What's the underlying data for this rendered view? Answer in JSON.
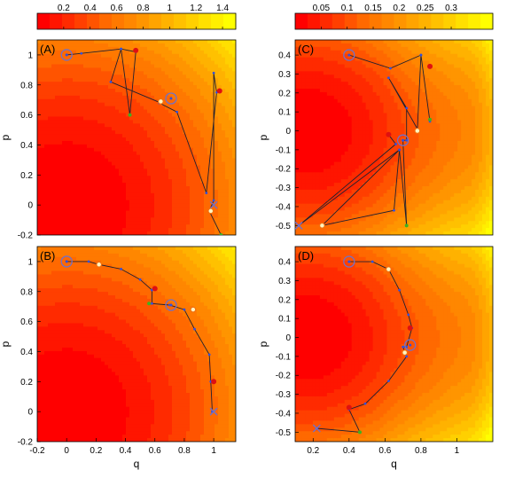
{
  "chart_data": [
    {
      "panel": "(A)",
      "type": "scatter",
      "xlabel": "",
      "ylabel": "p",
      "xlim": [
        -0.2,
        1.15
      ],
      "ylim": [
        -0.2,
        1.1
      ],
      "yticks": [
        "-0.2",
        "0",
        "0.2",
        "0.4",
        "0.6",
        "0.8",
        "1"
      ],
      "xticks": [],
      "colorbar": {
        "range": [
          0,
          1.5
        ],
        "ticks": [
          "0.2",
          "0.4",
          "0.6",
          "0.8",
          "1",
          "1.2",
          "1.4"
        ]
      },
      "field": {
        "type": "energy_radial",
        "min": 0,
        "max": 1.5
      },
      "trajectory": [
        [
          0,
          1
        ],
        [
          0.1,
          1.01
        ],
        [
          0.37,
          1.04
        ],
        [
          0.47,
          1.02
        ],
        [
          0.43,
          0.6
        ],
        [
          0.37,
          1.04
        ],
        [
          0.3,
          0.82
        ],
        [
          0.64,
          0.68
        ],
        [
          0.63,
          0.68
        ],
        [
          0.75,
          0.62
        ],
        [
          0.95,
          0.08
        ],
        [
          1.02,
          0.75
        ],
        [
          1.0,
          0.88
        ],
        [
          1.0,
          0.03
        ],
        [
          0.97,
          -0.04
        ],
        [
          1.05,
          -0.2
        ]
      ],
      "markers": [
        {
          "kind": "ring",
          "x": 0,
          "y": 1
        },
        {
          "kind": "ring",
          "x": 0.71,
          "y": 0.71
        },
        {
          "kind": "cross",
          "x": 1.0,
          "y": 0.0
        },
        {
          "kind": "red",
          "x": 0.47,
          "y": 1.03
        },
        {
          "kind": "red",
          "x": 1.04,
          "y": 0.76
        },
        {
          "kind": "orange",
          "x": 0.64,
          "y": 0.69
        },
        {
          "kind": "orange",
          "x": 0.98,
          "y": -0.04
        },
        {
          "kind": "green",
          "x": 0.43,
          "y": 0.6
        },
        {
          "kind": "green",
          "x": 1.05,
          "y": -0.2
        }
      ]
    },
    {
      "panel": "(C)",
      "type": "scatter",
      "xlabel": "",
      "ylabel": "p",
      "xlim": [
        0.1,
        1.2
      ],
      "ylim": [
        -0.55,
        0.48
      ],
      "yticks": [
        "-0.5",
        "-0.4",
        "-0.3",
        "-0.2",
        "-0.1",
        "0",
        "0.1",
        "0.2",
        "0.3",
        "0.4"
      ],
      "xticks": [],
      "colorbar": {
        "range": [
          0,
          0.38
        ],
        "ticks": [
          "0.05",
          "0.1",
          "0.15",
          "0.2",
          "0.25",
          "0.3"
        ]
      },
      "field": {
        "type": "energy_double_well",
        "min": 0,
        "max": 0.38
      },
      "trajectory": [
        [
          0.4,
          0.4
        ],
        [
          0.63,
          0.33
        ],
        [
          0.8,
          0.4
        ],
        [
          0.85,
          0.05
        ],
        [
          0.8,
          0.4
        ],
        [
          0.78,
          0.01
        ],
        [
          0.62,
          0.28
        ],
        [
          0.72,
          0.12
        ],
        [
          0.72,
          -0.05
        ],
        [
          0.7,
          -0.05
        ],
        [
          0.72,
          -0.5
        ],
        [
          0.68,
          -0.1
        ],
        [
          0.65,
          -0.42
        ],
        [
          0.25,
          -0.5
        ],
        [
          0.68,
          -0.1
        ],
        [
          0.12,
          -0.5
        ],
        [
          0.66,
          -0.07
        ],
        [
          0.62,
          -0.02
        ]
      ],
      "markers": [
        {
          "kind": "ring",
          "x": 0.4,
          "y": 0.4
        },
        {
          "kind": "ring",
          "x": 0.7,
          "y": -0.05
        },
        {
          "kind": "cross",
          "x": 0.12,
          "y": -0.5
        },
        {
          "kind": "red",
          "x": 0.85,
          "y": 0.34
        },
        {
          "kind": "red",
          "x": 0.62,
          "y": -0.02
        },
        {
          "kind": "orange",
          "x": 0.78,
          "y": 0.0
        },
        {
          "kind": "orange",
          "x": 0.25,
          "y": -0.5
        },
        {
          "kind": "green",
          "x": 0.85,
          "y": 0.06
        },
        {
          "kind": "green",
          "x": 0.72,
          "y": -0.5
        }
      ]
    },
    {
      "panel": "(B)",
      "type": "scatter",
      "xlabel": "q",
      "ylabel": "p",
      "xlim": [
        -0.2,
        1.15
      ],
      "ylim": [
        -0.2,
        1.1
      ],
      "yticks": [
        "-0.2",
        "0",
        "0.2",
        "0.4",
        "0.6",
        "0.8",
        "1"
      ],
      "xticks": [
        "-0.2",
        "0",
        "0.2",
        "0.4",
        "0.6",
        "0.8",
        "1"
      ],
      "field": {
        "type": "energy_radial",
        "min": 0,
        "max": 1.5
      },
      "trajectory": [
        [
          0,
          1
        ],
        [
          0.15,
          1.0
        ],
        [
          0.22,
          0.98
        ],
        [
          0.37,
          0.95
        ],
        [
          0.5,
          0.88
        ],
        [
          0.58,
          0.81
        ],
        [
          0.58,
          0.72
        ],
        [
          0.7,
          0.71
        ],
        [
          0.8,
          0.68
        ],
        [
          0.87,
          0.55
        ],
        [
          0.97,
          0.38
        ],
        [
          0.98,
          0.2
        ],
        [
          0.99,
          0.0
        ]
      ],
      "markers": [
        {
          "kind": "ring",
          "x": 0,
          "y": 1
        },
        {
          "kind": "ring",
          "x": 0.71,
          "y": 0.71
        },
        {
          "kind": "cross",
          "x": 1.0,
          "y": 0.0
        },
        {
          "kind": "red",
          "x": 0.6,
          "y": 0.82
        },
        {
          "kind": "red",
          "x": 1.0,
          "y": 0.2
        },
        {
          "kind": "orange",
          "x": 0.22,
          "y": 0.98
        },
        {
          "kind": "orange",
          "x": 0.86,
          "y": 0.68
        },
        {
          "kind": "green",
          "x": 0.56,
          "y": 0.72
        }
      ]
    },
    {
      "panel": "(D)",
      "type": "scatter",
      "xlabel": "q",
      "ylabel": "p",
      "xlim": [
        0.1,
        1.2
      ],
      "ylim": [
        -0.55,
        0.48
      ],
      "yticks": [
        "-0.5",
        "-0.4",
        "-0.3",
        "-0.2",
        "-0.1",
        "0",
        "0.1",
        "0.2",
        "0.3",
        "0.4"
      ],
      "xticks": [
        "0.2",
        "0.4",
        "0.6",
        "0.8",
        "1"
      ],
      "field": {
        "type": "energy_double_well",
        "min": 0,
        "max": 0.38
      },
      "trajectory": [
        [
          0.4,
          0.4
        ],
        [
          0.53,
          0.4
        ],
        [
          0.62,
          0.36
        ],
        [
          0.68,
          0.25
        ],
        [
          0.73,
          0.12
        ],
        [
          0.75,
          0.05
        ],
        [
          0.72,
          -0.05
        ],
        [
          0.7,
          -0.05
        ],
        [
          0.72,
          -0.1
        ],
        [
          0.62,
          -0.23
        ],
        [
          0.49,
          -0.35
        ],
        [
          0.4,
          -0.38
        ],
        [
          0.46,
          -0.5
        ],
        [
          0.22,
          -0.48
        ]
      ],
      "markers": [
        {
          "kind": "ring",
          "x": 0.4,
          "y": 0.4
        },
        {
          "kind": "ring",
          "x": 0.74,
          "y": -0.04
        },
        {
          "kind": "cross",
          "x": 0.22,
          "y": -0.48
        },
        {
          "kind": "red",
          "x": 0.74,
          "y": 0.05
        },
        {
          "kind": "red",
          "x": 0.4,
          "y": -0.37
        },
        {
          "kind": "orange",
          "x": 0.62,
          "y": 0.36
        },
        {
          "kind": "orange",
          "x": 0.71,
          "y": -0.08
        },
        {
          "kind": "green",
          "x": 0.46,
          "y": -0.5
        }
      ]
    }
  ],
  "colors": {
    "line": "#202030",
    "ring": "#7070c8",
    "dot_blue": "#3050e0",
    "red": "#e01010",
    "orange": "#f07010",
    "green": "#40b020"
  }
}
